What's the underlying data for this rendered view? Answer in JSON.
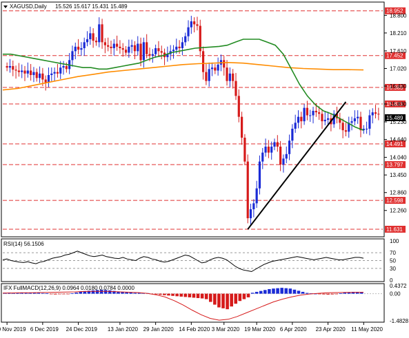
{
  "header": {
    "symbol": "XAGUSD,Daily",
    "ohlc": "15.526 15.617 15.431 15.489",
    "menu_icon": "triangle-down-icon"
  },
  "colors": {
    "background": "#ffffff",
    "bull": "#1a2bd6",
    "bear": "#d61a1a",
    "sma_fast": "#228b22",
    "sma_slow": "#ff8c00",
    "trendline": "#000000",
    "hline": "#e03030",
    "grid": "#d8d8d8"
  },
  "chart_data": [
    {
      "type": "candlestick",
      "panel": "price",
      "ylim": [
        11.4,
        19.2
      ],
      "y_ticks": [
        "18.800",
        "18.210",
        "17.610",
        "17.020",
        "16.430",
        "15.830",
        "15.230",
        "14.640",
        "14.040",
        "13.450",
        "12.860",
        "12.260"
      ],
      "x_ticks": [
        "20 Nov 2019",
        "6 Dec 2019",
        "24 Dec 2019",
        "13 Jan 2020",
        "29 Jan 2020",
        "14 Feb 2020",
        "3 Mar 2020",
        "19 Mar 2020",
        "6 Apr 2020",
        "23 Apr 2020",
        "11 May 2020"
      ],
      "current_price": "15.489",
      "levels": [
        {
          "value": 18.952,
          "label": "18.952"
        },
        {
          "value": 17.452,
          "label": "17.452"
        },
        {
          "value": 16.385,
          "label": "16.385"
        },
        {
          "value": 15.831,
          "label": "15.831"
        },
        {
          "value": 14.491,
          "label": "14.491"
        },
        {
          "value": 13.797,
          "label": "13.797"
        },
        {
          "value": 12.598,
          "label": "12.598"
        },
        {
          "value": 11.631,
          "label": "11.631"
        }
      ],
      "close": [
        17.05,
        17.1,
        16.98,
        16.95,
        16.9,
        16.95,
        16.85,
        16.95,
        16.8,
        16.9,
        16.7,
        16.85,
        16.65,
        16.55,
        16.8,
        16.85,
        16.9,
        16.85,
        17.05,
        17.1,
        17.0,
        17.3,
        17.6,
        17.75,
        17.65,
        17.7,
        17.9,
        18.0,
        18.2,
        17.95,
        17.9,
        18.5,
        17.9,
        17.8,
        17.75,
        17.7,
        17.85,
        17.75,
        17.7,
        17.65,
        17.55,
        17.75,
        17.8,
        17.6,
        17.85,
        17.3,
        17.9,
        17.5,
        17.45,
        17.5,
        17.7,
        17.6,
        17.55,
        17.4,
        17.5,
        17.6,
        17.65,
        17.75,
        17.7,
        17.9,
        18.1,
        18.4,
        18.6,
        18.5,
        18.45,
        17.6,
        16.9,
        16.6,
        17.0,
        17.05,
        16.95,
        17.15,
        17.3,
        17.05,
        16.6,
        16.85,
        16.6,
        16.1,
        15.4,
        14.7,
        13.9,
        12.0,
        12.3,
        12.5,
        13.0,
        13.9,
        14.2,
        14.4,
        14.2,
        14.4,
        14.55,
        14.4,
        13.8,
        14.0,
        14.15,
        14.6,
        15.0,
        15.2,
        15.4,
        15.25,
        15.7,
        15.45,
        15.45,
        15.6,
        15.55,
        15.5,
        15.25,
        15.3,
        15.35,
        15.15,
        15.5,
        15.35,
        15.2,
        14.95,
        14.9,
        15.2,
        15.25,
        15.35,
        15.4,
        14.95,
        15.0,
        15.0,
        15.45,
        15.55,
        15.5,
        15.489
      ],
      "sma_fast_values": [
        17.5,
        17.5,
        17.45,
        17.4,
        17.35,
        17.3,
        17.25,
        17.2,
        17.15,
        17.1,
        17.05,
        17.05,
        17.0,
        17.0,
        17.05,
        17.1,
        17.15,
        17.2,
        17.3,
        17.4,
        17.45,
        17.55,
        17.6,
        17.65,
        17.7,
        17.72,
        17.74,
        17.76,
        17.8,
        17.9,
        18.0,
        18.0,
        18.0,
        17.9,
        17.8,
        17.5,
        17.0,
        16.5,
        16.1,
        15.8,
        15.6,
        15.5,
        15.35,
        15.2,
        15.05,
        14.95
      ],
      "sma_slow_values": [
        16.3,
        16.35,
        16.45,
        16.55,
        16.65,
        16.75,
        16.82,
        16.9,
        16.95,
        17.0,
        17.05,
        17.1,
        17.15,
        17.18,
        17.2,
        17.22,
        17.2,
        17.15,
        17.1,
        17.05,
        17.02,
        17.0,
        16.98,
        16.98,
        16.97
      ],
      "trendline": {
        "from": [
          "19 Mar 2020",
          11.631
        ],
        "to": [
          "1 May 2020",
          15.9
        ]
      }
    },
    {
      "type": "line",
      "panel": "rsi",
      "title": "RSI(14) 56.1506",
      "ylim": [
        0,
        100
      ],
      "y_ticks": [
        "100",
        "70",
        "50",
        "30",
        "0"
      ],
      "values": [
        52,
        54,
        50,
        48,
        46,
        45,
        47,
        44,
        42,
        46,
        48,
        52,
        56,
        58,
        60,
        64,
        66,
        70,
        74,
        70,
        66,
        62,
        60,
        62,
        64,
        60,
        58,
        56,
        55,
        58,
        54,
        52,
        50,
        56,
        60,
        58,
        54,
        52,
        48,
        46,
        48,
        52,
        56,
        60,
        64,
        62,
        56,
        50,
        44,
        46,
        52,
        56,
        58,
        56,
        52,
        44,
        36,
        30,
        26,
        24,
        22,
        28,
        34,
        40,
        44,
        48,
        50,
        52,
        54,
        56,
        58,
        60,
        58,
        56,
        54,
        52,
        54,
        56,
        58,
        56,
        54,
        52,
        52,
        54,
        56,
        58,
        58,
        56
      ]
    },
    {
      "type": "bar",
      "panel": "macd",
      "title": "IFX FullMACD(12,26,9) 0.0964 0.0180 0.0784 0.0000",
      "ylim": [
        -1.4828,
        0.4372
      ],
      "y_ticks": [
        "0.4372",
        "0.00",
        "-1.4828"
      ],
      "histogram": [
        0.05,
        0.06,
        0.05,
        0.04,
        0.05,
        0.06,
        0.06,
        0.05,
        0.04,
        0.03,
        0.02,
        -0.02,
        -0.04,
        -0.03,
        -0.02,
        -0.02,
        0.02,
        0.06,
        0.1,
        0.14,
        0.16,
        0.18,
        0.2,
        0.21,
        0.2,
        0.18,
        0.15,
        0.12,
        0.1,
        0.08,
        0.06,
        0.04,
        0.05,
        0.04,
        0.03,
        -0.02,
        -0.04,
        -0.06,
        -0.08,
        -0.1,
        -0.12,
        -0.14,
        -0.16,
        -0.18,
        -0.2,
        -0.22,
        -0.24,
        -0.26,
        -0.3,
        -0.45,
        -0.6,
        -0.75,
        -0.8,
        -0.85,
        -0.7,
        -0.55,
        -0.4,
        -0.3,
        -0.2,
        0.05,
        0.1,
        0.15,
        0.2,
        0.25,
        0.28,
        0.3,
        0.32,
        0.3,
        0.28,
        0.22,
        0.16,
        0.1,
        0.04,
        0.02,
        0.0,
        -0.02,
        -0.04,
        -0.05,
        -0.04,
        -0.02,
        0.02,
        0.06,
        0.08,
        0.1,
        0.1,
        0.096
      ],
      "signal": [
        0.03,
        0.04,
        0.05,
        0.05,
        0.06,
        0.07,
        0.08,
        0.09,
        0.1,
        0.12,
        0.13,
        0.13,
        0.12,
        0.1,
        0.08,
        0.06,
        0.02,
        -0.06,
        -0.18,
        -0.38,
        -0.62,
        -0.9,
        -1.15,
        -1.35,
        -1.45,
        -1.4,
        -1.25,
        -1.05,
        -0.85,
        -0.65,
        -0.45,
        -0.3,
        -0.18,
        -0.08,
        -0.02,
        0.02,
        0.05,
        0.06,
        0.07,
        0.075,
        0.078
      ]
    }
  ]
}
